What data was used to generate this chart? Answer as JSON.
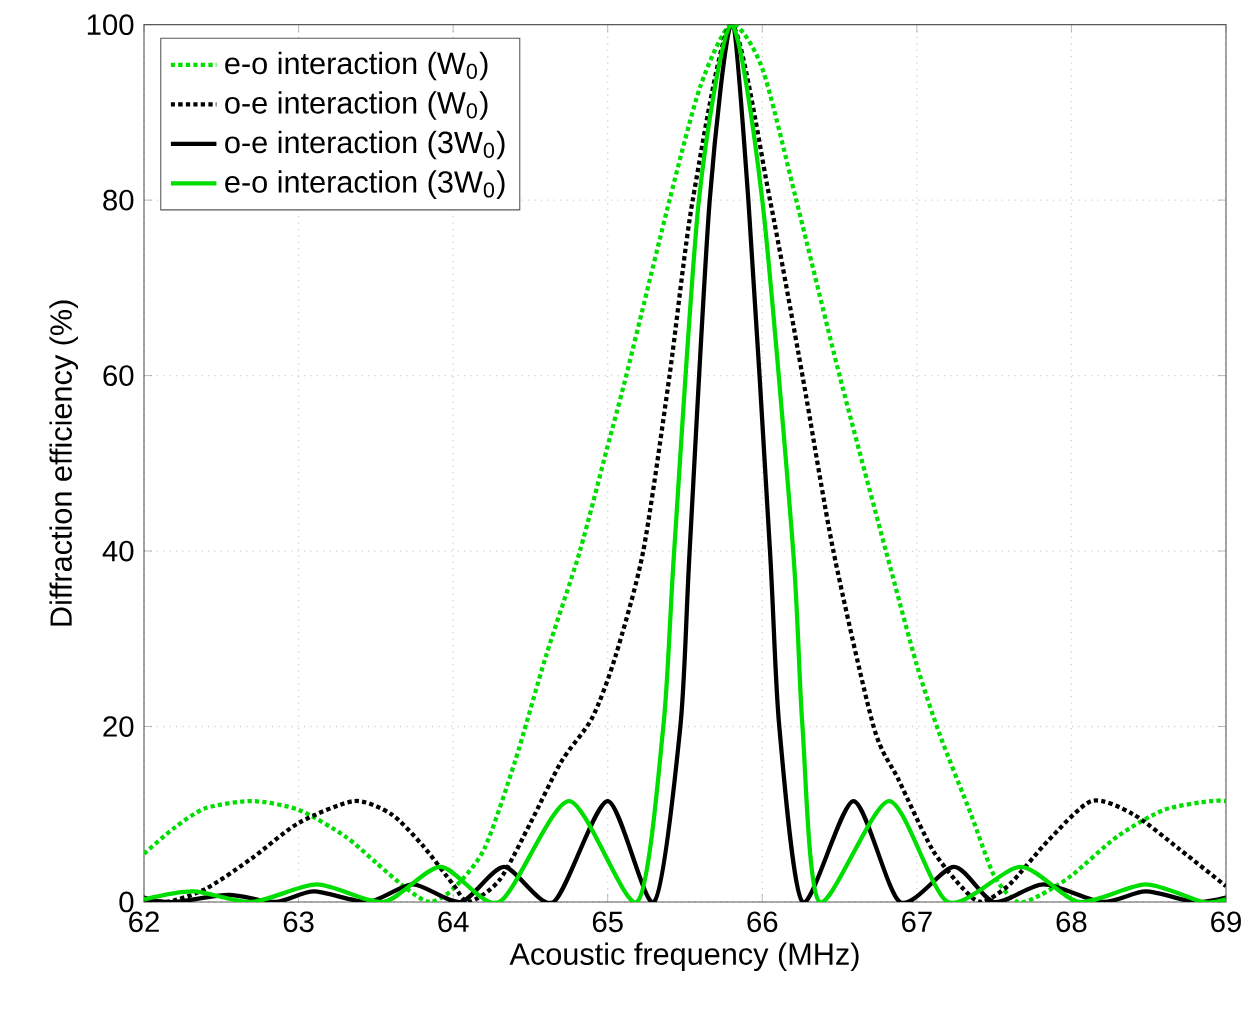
{
  "chart_data": {
    "type": "line",
    "xlabel": "Acoustic frequency (MHz)",
    "ylabel": "Diffraction efficiency (%)",
    "xlim": [
      62,
      69
    ],
    "ylim": [
      0,
      100
    ],
    "xticks": [
      62,
      63,
      64,
      65,
      66,
      67,
      68,
      69
    ],
    "yticks": [
      0,
      20,
      40,
      60,
      80,
      100
    ],
    "grid": true,
    "legend": "top left",
    "series": [
      {
        "name": "e-o interaction (W$_{0}$)",
        "color": "#00dd00",
        "line_style": "dotted",
        "x": [
          62.0,
          62.2,
          62.4,
          62.7,
          63.0,
          63.3,
          63.5,
          63.7,
          63.85,
          64.0,
          64.2,
          64.4,
          64.6,
          64.82,
          65.0,
          65.12,
          65.4,
          65.6,
          65.8,
          66.0,
          66.22,
          66.5,
          66.8,
          67.0,
          67.15,
          67.35,
          67.5,
          67.65,
          67.8,
          68.0,
          68.3,
          68.6,
          68.9,
          69.0
        ],
        "values": [
          5.5,
          8.5,
          10.7,
          11.5,
          10.5,
          7.5,
          4.5,
          1.5,
          0,
          1.5,
          6,
          16,
          28,
          40,
          52,
          60,
          80,
          93,
          100,
          95,
          80,
          60,
          40,
          27,
          19,
          10,
          3,
          0,
          0.8,
          3,
          7.5,
          10.5,
          11.5,
          11.5
        ]
      },
      {
        "name": "o-e interaction (W$_{0}$)",
        "color": "#000000",
        "line_style": "dotted",
        "x": [
          62.0,
          62.15,
          62.4,
          62.7,
          63.0,
          63.36,
          63.6,
          63.8,
          64.0,
          64.1,
          64.3,
          64.5,
          64.7,
          64.9,
          65.05,
          65.23,
          65.4,
          65.55,
          65.8,
          66.05,
          66.26,
          66.46,
          66.72,
          66.88,
          67.1,
          67.3,
          67.42,
          67.6,
          67.85,
          68.13,
          68.4,
          68.7,
          69.0
        ],
        "values": [
          0.5,
          0,
          1.5,
          5,
          9,
          11.5,
          10,
          6.5,
          2,
          0,
          2.5,
          9,
          16,
          21,
          28,
          40,
          60,
          80,
          100,
          80,
          60,
          40,
          20,
          14,
          6,
          1.5,
          0,
          2,
          7,
          11.5,
          10,
          6,
          1.8
        ]
      },
      {
        "name": "o-e interaction (3W$_{0}$)",
        "color": "#000000",
        "line_style": "solid",
        "x": [
          62.0,
          62.2,
          62.55,
          62.85,
          63.1,
          63.45,
          63.74,
          64.05,
          64.33,
          64.65,
          65.0,
          65.3,
          65.47,
          65.53,
          65.66,
          65.8,
          65.91,
          66.05,
          66.11,
          66.26,
          66.59,
          66.89,
          67.24,
          67.5,
          67.82,
          68.2,
          68.48,
          68.8,
          69.0
        ],
        "values": [
          0.3,
          0,
          0.8,
          0,
          1.2,
          0,
          2,
          0,
          4,
          0,
          11.5,
          0,
          20,
          40,
          80,
          100,
          80,
          40,
          20,
          0,
          11.5,
          0,
          4,
          0,
          2,
          0,
          1.2,
          0,
          0.5
        ]
      },
      {
        "name": "e-o interaction (3W$_{0}$)",
        "color": "#00dd00",
        "line_style": "solid",
        "x": [
          62.0,
          62.32,
          62.7,
          63.12,
          63.55,
          63.92,
          64.3,
          64.75,
          65.19,
          65.36,
          65.43,
          65.59,
          65.8,
          66.0,
          66.2,
          66.26,
          66.37,
          66.82,
          67.2,
          67.67,
          68.05,
          68.48,
          68.85,
          69.0
        ],
        "values": [
          0.3,
          1.2,
          0,
          2,
          0,
          4,
          0,
          11.5,
          0,
          20,
          40,
          80,
          100,
          80,
          40,
          20,
          0,
          11.5,
          0,
          4,
          0,
          2,
          0,
          0.3
        ]
      }
    ]
  }
}
